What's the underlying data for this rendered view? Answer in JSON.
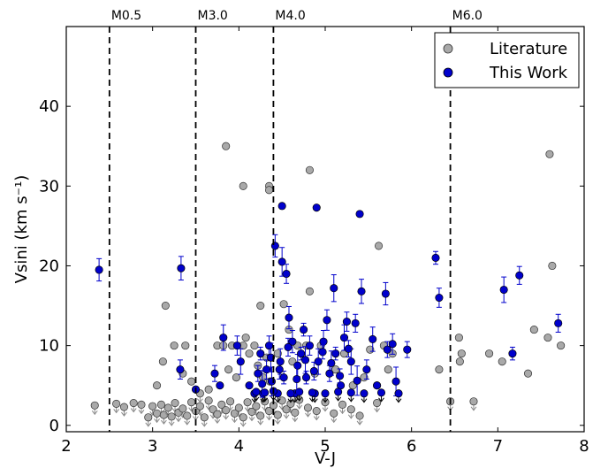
{
  "chart_data": {
    "type": "scatter",
    "xlabel": "V-J",
    "ylabel": "Vsini (km s⁻¹)",
    "xlim": [
      2,
      8
    ],
    "ylim": [
      -0.8,
      50
    ],
    "xticks": [
      "2",
      "3",
      "4",
      "5",
      "6",
      "7",
      "8"
    ],
    "yticks": [
      "0",
      "10",
      "20",
      "30",
      "40"
    ],
    "grid": false,
    "legend_position": "top-right",
    "spectral_type_lines": [
      {
        "label": "M0.5",
        "x": 2.5
      },
      {
        "label": "M3.0",
        "x": 3.5
      },
      {
        "label": "M4.0",
        "x": 4.4
      },
      {
        "label": "M6.0",
        "x": 6.45
      }
    ],
    "series": [
      {
        "name": "Literature",
        "color": "#a9a9a9",
        "points": [
          [
            2.33,
            2.5
          ],
          [
            2.58,
            2.7
          ],
          [
            2.67,
            2.3
          ],
          [
            2.78,
            2.8
          ],
          [
            2.87,
            2.6
          ],
          [
            2.95,
            1.0
          ],
          [
            3.0,
            2.4
          ],
          [
            3.05,
            1.5
          ],
          [
            3.1,
            2.6
          ],
          [
            3.13,
            1.3
          ],
          [
            3.18,
            2.2
          ],
          [
            3.22,
            1.1
          ],
          [
            3.26,
            2.8
          ],
          [
            3.3,
            1.6
          ],
          [
            3.35,
            2.1
          ],
          [
            3.4,
            1.2
          ],
          [
            3.45,
            2.9
          ],
          [
            3.5,
            1.8
          ],
          [
            3.55,
            2.4
          ],
          [
            3.6,
            1.0
          ],
          [
            3.65,
            3.1
          ],
          [
            3.7,
            2.0
          ],
          [
            3.75,
            1.4
          ],
          [
            3.8,
            2.6
          ],
          [
            3.85,
            1.9
          ],
          [
            3.9,
            3.0
          ],
          [
            3.95,
            1.5
          ],
          [
            4.0,
            2.2
          ],
          [
            4.05,
            1.0
          ],
          [
            4.1,
            2.9
          ],
          [
            4.15,
            1.7
          ],
          [
            4.2,
            2.4
          ],
          [
            4.25,
            1.2
          ],
          [
            4.3,
            3.0
          ],
          [
            4.35,
            1.8
          ],
          [
            4.4,
            2.5
          ],
          [
            4.45,
            1.3
          ],
          [
            4.5,
            3.1
          ],
          [
            4.55,
            2.0
          ],
          [
            4.6,
            2.7
          ],
          [
            4.65,
            1.6
          ],
          [
            4.7,
            3.2
          ],
          [
            4.8,
            2.2
          ],
          [
            4.9,
            1.8
          ],
          [
            5.0,
            2.9
          ],
          [
            5.1,
            1.5
          ],
          [
            5.2,
            2.6
          ],
          [
            5.3,
            2.0
          ],
          [
            5.4,
            1.2
          ],
          [
            5.6,
            2.8
          ],
          [
            3.05,
            5.0
          ],
          [
            3.12,
            8.0
          ],
          [
            3.15,
            15.0
          ],
          [
            3.25,
            10.0
          ],
          [
            3.35,
            6.5
          ],
          [
            3.38,
            10.0
          ],
          [
            3.45,
            5.5
          ],
          [
            3.55,
            4.0
          ],
          [
            3.65,
            4.5
          ],
          [
            3.75,
            10.0
          ],
          [
            3.82,
            10.0
          ],
          [
            3.88,
            7.0
          ],
          [
            3.92,
            10.0
          ],
          [
            3.97,
            6.0
          ],
          [
            4.05,
            10.0
          ],
          [
            4.08,
            11.0
          ],
          [
            4.12,
            9.0
          ],
          [
            4.18,
            10.0
          ],
          [
            4.22,
            7.5
          ],
          [
            4.25,
            15.0
          ],
          [
            4.28,
            6.0
          ],
          [
            4.32,
            8.5
          ],
          [
            4.36,
            5.5
          ],
          [
            4.45,
            9.0
          ],
          [
            4.52,
            15.2
          ],
          [
            4.58,
            12.0
          ],
          [
            4.62,
            8.0
          ],
          [
            4.68,
            10.0
          ],
          [
            4.78,
            10.0
          ],
          [
            4.82,
            16.8
          ],
          [
            4.88,
            6.5
          ],
          [
            4.95,
            10.0
          ],
          [
            5.12,
            7.0
          ],
          [
            5.22,
            9.0
          ],
          [
            5.32,
            5.0
          ],
          [
            5.45,
            6.0
          ],
          [
            5.52,
            9.5
          ],
          [
            5.6,
            5.0
          ],
          [
            5.68,
            10.0
          ],
          [
            5.73,
            7.0
          ],
          [
            5.78,
            9.0
          ],
          [
            5.62,
            22.5
          ],
          [
            6.32,
            7.0
          ],
          [
            6.45,
            3.0
          ],
          [
            6.55,
            11.0
          ],
          [
            6.58,
            9.0
          ],
          [
            6.56,
            8.0
          ],
          [
            6.72,
            3.0
          ],
          [
            6.9,
            9.0
          ],
          [
            7.05,
            8.0
          ],
          [
            7.35,
            6.5
          ],
          [
            7.42,
            12.0
          ],
          [
            7.58,
            11.0
          ],
          [
            7.63,
            20.0
          ],
          [
            7.73,
            10.0
          ],
          [
            7.6,
            34.0
          ],
          [
            3.85,
            35.0
          ],
          [
            4.05,
            30.0
          ],
          [
            4.35,
            30.0
          ],
          [
            4.35,
            29.5
          ],
          [
            4.82,
            32.0
          ]
        ]
      },
      {
        "name": "This Work",
        "color": "#0000cc",
        "points": [
          [
            2.38,
            19.5
          ],
          [
            3.33,
            19.7
          ],
          [
            3.32,
            7.0
          ],
          [
            3.5,
            4.5
          ],
          [
            3.72,
            6.5
          ],
          [
            3.78,
            5.0
          ],
          [
            3.82,
            11.0
          ],
          [
            3.98,
            10.0
          ],
          [
            4.02,
            8.0
          ],
          [
            4.12,
            5.0
          ],
          [
            4.18,
            4.0
          ],
          [
            4.22,
            6.5
          ],
          [
            4.25,
            9.0
          ],
          [
            4.28,
            4.0
          ],
          [
            4.32,
            7.0
          ],
          [
            4.35,
            10.0
          ],
          [
            4.38,
            5.5
          ],
          [
            4.42,
            22.5
          ],
          [
            4.45,
            4.0
          ],
          [
            4.48,
            8.0
          ],
          [
            4.5,
            27.5
          ],
          [
            4.5,
            20.5
          ],
          [
            4.55,
            19.0
          ],
          [
            4.52,
            6.0
          ],
          [
            4.58,
            13.5
          ],
          [
            4.62,
            10.5
          ],
          [
            4.65,
            4.0
          ],
          [
            4.68,
            7.5
          ],
          [
            4.72,
            9.0
          ],
          [
            4.75,
            12.0
          ],
          [
            4.78,
            6.0
          ],
          [
            4.82,
            10.0
          ],
          [
            4.88,
            4.0
          ],
          [
            4.9,
            27.3
          ],
          [
            4.92,
            8.0
          ],
          [
            4.98,
            10.5
          ],
          [
            5.02,
            13.2
          ],
          [
            5.05,
            6.5
          ],
          [
            5.1,
            17.2
          ],
          [
            5.12,
            9.0
          ],
          [
            5.18,
            5.0
          ],
          [
            5.22,
            11.0
          ],
          [
            5.25,
            13.0
          ],
          [
            5.3,
            8.0
          ],
          [
            5.35,
            12.8
          ],
          [
            5.4,
            26.5
          ],
          [
            5.42,
            16.8
          ],
          [
            5.48,
            7.0
          ],
          [
            5.55,
            10.8
          ],
          [
            5.6,
            5.0
          ],
          [
            5.7,
            16.5
          ],
          [
            5.72,
            9.5
          ],
          [
            5.78,
            10.2
          ],
          [
            5.82,
            5.5
          ],
          [
            5.95,
            9.5
          ],
          [
            6.28,
            21.0
          ],
          [
            6.32,
            16.0
          ],
          [
            7.07,
            17.0
          ],
          [
            7.17,
            9.0
          ],
          [
            7.25,
            18.8
          ],
          [
            7.7,
            12.8
          ],
          [
            4.2,
            4.2
          ],
          [
            4.3,
            4.1
          ],
          [
            4.4,
            4.3
          ],
          [
            4.6,
            4.0
          ],
          [
            4.7,
            4.2
          ],
          [
            4.85,
            4.1
          ],
          [
            5.0,
            4.0
          ],
          [
            5.15,
            4.2
          ],
          [
            5.3,
            4.1
          ],
          [
            5.45,
            4.0
          ],
          [
            5.65,
            4.1
          ],
          [
            5.85,
            4.0
          ],
          [
            4.27,
            5.2
          ],
          [
            4.37,
            8.5
          ],
          [
            4.47,
            7.0
          ],
          [
            4.57,
            9.8
          ],
          [
            4.67,
            5.8
          ],
          [
            4.77,
            8.2
          ],
          [
            4.87,
            6.8
          ],
          [
            4.97,
            9.2
          ],
          [
            5.07,
            7.8
          ],
          [
            5.17,
            6.2
          ],
          [
            5.27,
            9.6
          ],
          [
            5.37,
            5.6
          ]
        ]
      }
    ]
  }
}
